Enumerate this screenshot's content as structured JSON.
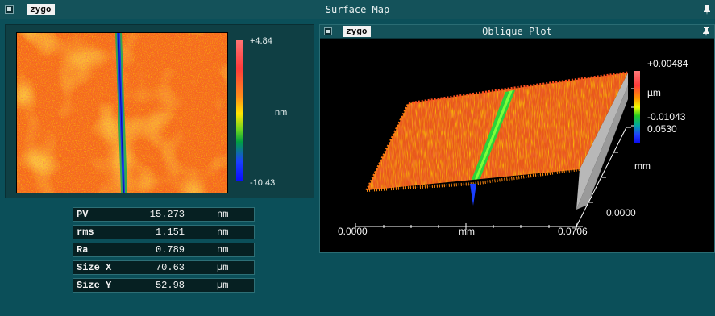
{
  "window": {
    "title": "Surface Map",
    "logo": "zygo"
  },
  "surface_map": {
    "colorbar": {
      "max": "+4.84",
      "unit": "nm",
      "min": "-10.43"
    }
  },
  "stats": [
    {
      "label": "PV",
      "value": "15.273",
      "unit": "nm"
    },
    {
      "label": "rms",
      "value": "1.151",
      "unit": "nm"
    },
    {
      "label": "Ra",
      "value": "0.789",
      "unit": "nm"
    },
    {
      "label": "Size X",
      "value": "70.63",
      "unit": "µm"
    },
    {
      "label": "Size Y",
      "value": "52.98",
      "unit": "µm"
    }
  ],
  "oblique_plot": {
    "title": "Oblique Plot",
    "logo": "zygo",
    "z_max": "+0.00484",
    "z_unit": "µm",
    "z_min": "-0.01043",
    "y_max": "0.0530",
    "y_unit": "mm",
    "y_min": "0.0000",
    "x_min": "0.0000",
    "x_unit": "mm",
    "x_max": "0.0706"
  },
  "icons": {
    "system_menu": "system-menu-icon",
    "pin": "pin-icon"
  },
  "colors": {
    "background": "#0b4f59",
    "panel": "#0f3f44",
    "titlebar": "#14525a",
    "scratch": "#1a3fff"
  }
}
